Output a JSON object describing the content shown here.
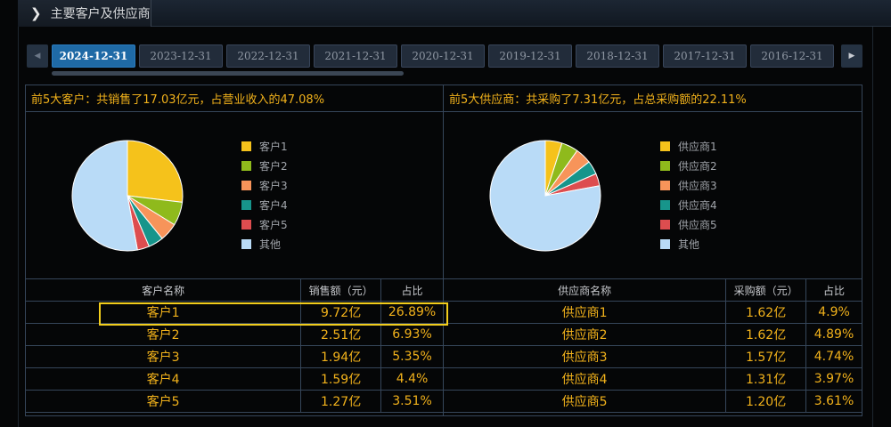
{
  "title": "主要客户及供应商",
  "tabs": [
    "2024-12-31",
    "2023-12-31",
    "2022-12-31",
    "2021-12-31",
    "2020-12-31",
    "2019-12-31",
    "2018-12-31",
    "2017-12-31",
    "2016-12-31"
  ],
  "active_tab": "2024-12-31",
  "colors": [
    "#f5c21b",
    "#8fba1c",
    "#f7945a",
    "#17958b",
    "#dd4d4f",
    "#b9dbf7"
  ],
  "customers": {
    "summary": "前5大客户：共销售了17.03亿元，占营业收入的47.08%",
    "legend": [
      "客户1",
      "客户2",
      "客户3",
      "客户4",
      "客户5",
      "其他"
    ],
    "columns": [
      "客户名称",
      "销售额（元）",
      "占比"
    ],
    "rows": [
      [
        "客户1",
        "9.72亿",
        "26.89%"
      ],
      [
        "客户2",
        "2.51亿",
        "6.93%"
      ],
      [
        "客户3",
        "1.94亿",
        "5.35%"
      ],
      [
        "客户4",
        "1.59亿",
        "4.4%"
      ],
      [
        "客户5",
        "1.27亿",
        "3.51%"
      ]
    ]
  },
  "suppliers": {
    "summary": "前5大供应商：共采购了7.31亿元，占总采购额的22.11%",
    "legend": [
      "供应商1",
      "供应商2",
      "供应商3",
      "供应商4",
      "供应商5",
      "其他"
    ],
    "columns": [
      "供应商名称",
      "采购额（元）",
      "占比"
    ],
    "rows": [
      [
        "供应商1",
        "1.62亿",
        "4.9%"
      ],
      [
        "供应商2",
        "1.62亿",
        "4.89%"
      ],
      [
        "供应商3",
        "1.57亿",
        "4.74%"
      ],
      [
        "供应商4",
        "1.31亿",
        "3.97%"
      ],
      [
        "供应商5",
        "1.20亿",
        "3.61%"
      ]
    ]
  },
  "chart_data": [
    {
      "type": "pie",
      "categories": [
        "客户1",
        "客户2",
        "客户3",
        "客户4",
        "客户5",
        "其他"
      ],
      "values": [
        26.89,
        6.93,
        5.35,
        4.4,
        3.51,
        52.92
      ]
    },
    {
      "type": "pie",
      "categories": [
        "供应商1",
        "供应商2",
        "供应商3",
        "供应商4",
        "供应商5",
        "其他"
      ],
      "values": [
        4.9,
        4.89,
        4.74,
        3.97,
        3.61,
        77.89
      ]
    }
  ]
}
